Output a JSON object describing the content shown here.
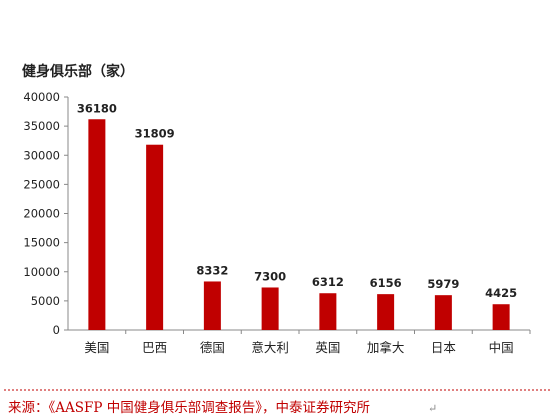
{
  "chart_data": {
    "type": "bar",
    "title": "",
    "ylabel": "健身俱乐部（家）",
    "xlabel": "",
    "categories": [
      "美国",
      "巴西",
      "德国",
      "意大利",
      "英国",
      "加拿大",
      "日本",
      "中国"
    ],
    "values": [
      36180,
      31809,
      8332,
      7300,
      6312,
      6156,
      5979,
      4425
    ],
    "ylim": [
      0,
      40000
    ],
    "yticks": [
      0,
      5000,
      10000,
      15000,
      20000,
      25000,
      30000,
      35000,
      40000
    ],
    "grid": false,
    "legend": "none",
    "bar_color": "#c00000",
    "axis_color": "#888888"
  },
  "source": {
    "text": "来源：《AASFP 中国健身俱乐部调查报告》，中泰证券研究所",
    "return_mark": "↵",
    "color": "#c00000"
  }
}
